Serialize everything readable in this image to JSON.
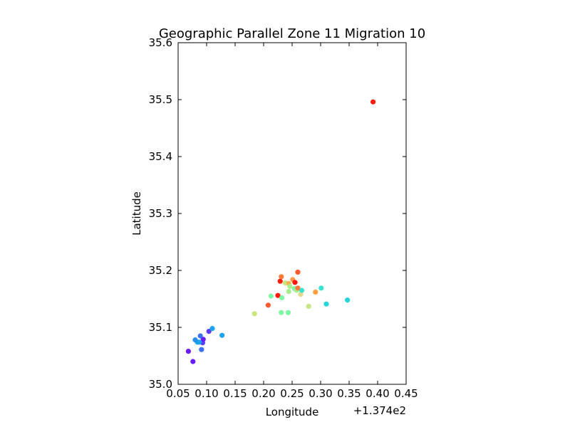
{
  "chart_data": {
    "type": "scatter",
    "title": "Geographic Parallel Zone 11 Migration 10",
    "xlabel": "Longitude",
    "ylabel": "Latitude",
    "x_offset_label": "+1.374e2",
    "xlim": [
      0.05,
      0.45
    ],
    "ylim": [
      35.0,
      35.6
    ],
    "xticks": [
      "0.05",
      "0.10",
      "0.15",
      "0.20",
      "0.25",
      "0.30",
      "0.35",
      "0.40",
      "0.45"
    ],
    "yticks": [
      "35.0",
      "35.1",
      "35.2",
      "35.3",
      "35.4",
      "35.5",
      "35.6"
    ],
    "grid": false,
    "points": [
      {
        "x": 0.076,
        "y": 35.04,
        "color": "#6a1cf6"
      },
      {
        "x": 0.068,
        "y": 35.058,
        "color": "#6a1cf6"
      },
      {
        "x": 0.091,
        "y": 35.061,
        "color": "#3b6ff3"
      },
      {
        "x": 0.093,
        "y": 35.073,
        "color": "#5a3df5"
      },
      {
        "x": 0.094,
        "y": 35.079,
        "color": "#6a1cf6"
      },
      {
        "x": 0.084,
        "y": 35.074,
        "color": "#1ca3eb"
      },
      {
        "x": 0.08,
        "y": 35.078,
        "color": "#2a8eef"
      },
      {
        "x": 0.087,
        "y": 35.074,
        "color": "#1ca3eb"
      },
      {
        "x": 0.089,
        "y": 35.085,
        "color": "#3b6ff3"
      },
      {
        "x": 0.104,
        "y": 35.093,
        "color": "#5a3df5"
      },
      {
        "x": 0.11,
        "y": 35.098,
        "color": "#1ca3eb"
      },
      {
        "x": 0.127,
        "y": 35.086,
        "color": "#1ca3eb"
      },
      {
        "x": 0.184,
        "y": 35.124,
        "color": "#c6e67f"
      },
      {
        "x": 0.208,
        "y": 35.139,
        "color": "#ff5a2c"
      },
      {
        "x": 0.213,
        "y": 35.155,
        "color": "#7ef7a4"
      },
      {
        "x": 0.225,
        "y": 35.156,
        "color": "#ff1a0e"
      },
      {
        "x": 0.231,
        "y": 35.126,
        "color": "#7ef7a4"
      },
      {
        "x": 0.232,
        "y": 35.152,
        "color": "#7ef7a4"
      },
      {
        "x": 0.243,
        "y": 35.126,
        "color": "#7ef7a4"
      },
      {
        "x": 0.244,
        "y": 35.163,
        "color": "#a8ee8e"
      },
      {
        "x": 0.229,
        "y": 35.181,
        "color": "#ff1a0e"
      },
      {
        "x": 0.231,
        "y": 35.189,
        "color": "#ff7a3a"
      },
      {
        "x": 0.238,
        "y": 35.178,
        "color": "#c6e67f"
      },
      {
        "x": 0.244,
        "y": 35.177,
        "color": "#ffb050"
      },
      {
        "x": 0.246,
        "y": 35.172,
        "color": "#a8ee8e"
      },
      {
        "x": 0.251,
        "y": 35.184,
        "color": "#ff9a4a"
      },
      {
        "x": 0.255,
        "y": 35.179,
        "color": "#ff1a0e"
      },
      {
        "x": 0.254,
        "y": 35.168,
        "color": "#7ef7a4"
      },
      {
        "x": 0.258,
        "y": 35.165,
        "color": "#a8ee8e"
      },
      {
        "x": 0.26,
        "y": 35.169,
        "color": "#ff7a3a"
      },
      {
        "x": 0.26,
        "y": 35.197,
        "color": "#ff5a2c"
      },
      {
        "x": 0.265,
        "y": 35.158,
        "color": "#e0d88a"
      },
      {
        "x": 0.267,
        "y": 35.165,
        "color": "#39e3d0"
      },
      {
        "x": 0.279,
        "y": 35.137,
        "color": "#c6e67f"
      },
      {
        "x": 0.291,
        "y": 35.162,
        "color": "#ffa040"
      },
      {
        "x": 0.301,
        "y": 35.169,
        "color": "#39e3d0"
      },
      {
        "x": 0.31,
        "y": 35.141,
        "color": "#27d4d8"
      },
      {
        "x": 0.347,
        "y": 35.148,
        "color": "#27d4d8"
      },
      {
        "x": 0.392,
        "y": 35.496,
        "color": "#ff1a0e"
      }
    ]
  }
}
